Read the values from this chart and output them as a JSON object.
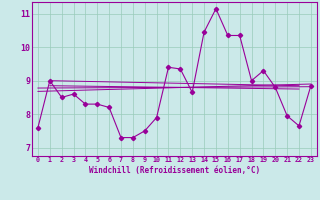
{
  "xlabel": "Windchill (Refroidissement éolien,°C)",
  "background_color": "#cbe9e9",
  "line_color": "#990099",
  "xlim": [
    -0.5,
    23.5
  ],
  "ylim": [
    6.75,
    11.35
  ],
  "xticks": [
    0,
    1,
    2,
    3,
    4,
    5,
    6,
    7,
    8,
    9,
    10,
    11,
    12,
    13,
    14,
    15,
    16,
    17,
    18,
    19,
    20,
    21,
    22,
    23
  ],
  "yticks": [
    7,
    8,
    9,
    10,
    11
  ],
  "grid_color": "#99ccbb",
  "series1_x": [
    0,
    1,
    2,
    3,
    4,
    5,
    6,
    7,
    8,
    9,
    10,
    11,
    12,
    13,
    14,
    15,
    16,
    17,
    18,
    19,
    20,
    21,
    22,
    23
  ],
  "series1_y": [
    7.6,
    9.0,
    8.5,
    8.6,
    8.3,
    8.3,
    8.2,
    7.3,
    7.3,
    7.5,
    7.9,
    9.4,
    9.35,
    8.65,
    10.45,
    11.15,
    10.35,
    10.35,
    9.0,
    9.3,
    8.8,
    7.95,
    7.65,
    8.85
  ],
  "trend_lines": [
    {
      "x": [
        0,
        23
      ],
      "y": [
        8.78,
        8.82
      ]
    },
    {
      "x": [
        0,
        23
      ],
      "y": [
        8.68,
        8.9
      ]
    },
    {
      "x": [
        1,
        22
      ],
      "y": [
        9.0,
        8.85
      ]
    },
    {
      "x": [
        1,
        22
      ],
      "y": [
        8.85,
        8.75
      ]
    }
  ]
}
